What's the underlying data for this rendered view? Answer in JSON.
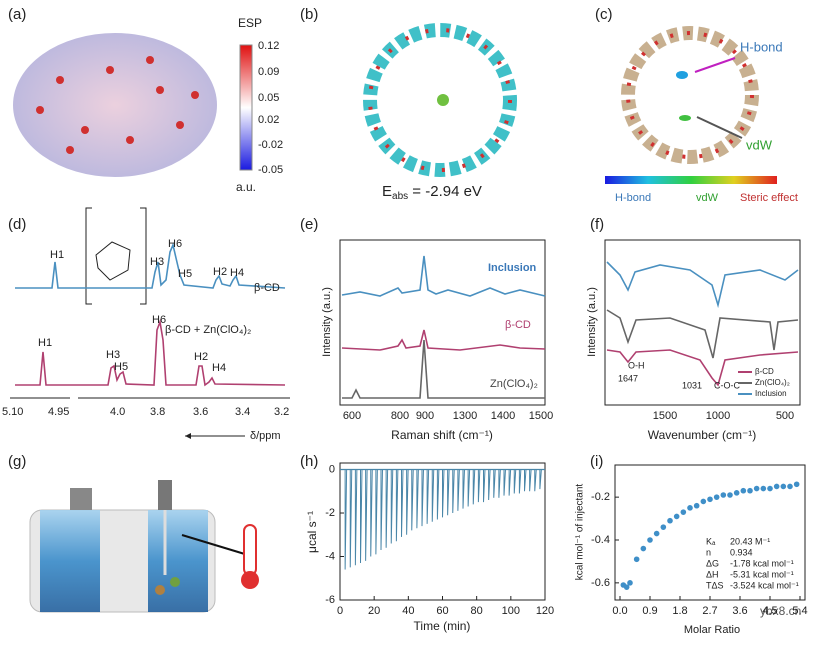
{
  "panels": {
    "a": {
      "label": "(a)",
      "colorbar_title": "ESP",
      "colorbar_unit": "a.u.",
      "colorbar_ticks": [
        "0.12",
        "0.09",
        "0.05",
        "0.02",
        "-0.02",
        "-0.05"
      ]
    },
    "b": {
      "label": "(b)",
      "energy": {
        "main": "E",
        "sub": "abs",
        "rest": " = -2.94 eV"
      }
    },
    "c": {
      "label": "(c)",
      "hbond": "H-bond",
      "vdw": "vdW",
      "scale_labels": [
        "H-bond",
        "vdW",
        "Steric effect"
      ]
    },
    "d": {
      "label": "(d)",
      "peaks_top": [
        "H1",
        "H6",
        "H3",
        "H5",
        "H2",
        "H4"
      ],
      "trace_top": "β-CD",
      "peaks_bottom": [
        "H1",
        "H3",
        "H5",
        "H6",
        "H2",
        "H4"
      ],
      "trace_bottom": "β-CD + Zn(ClO₄)₂",
      "xticks": [
        "5.10",
        "4.95",
        "4.0",
        "3.8",
        "3.6",
        "3.4",
        "3.2"
      ],
      "xlabel": "δ/ppm"
    },
    "e": {
      "label": "(e)",
      "ylabel": "Intensity (a.u.)",
      "xlabel": "Raman shift (cm⁻¹)",
      "xticks": [
        "600",
        "800",
        "900",
        "1300",
        "1400",
        "1500"
      ],
      "traces": [
        "Inclusion",
        "β-CD",
        "Zn(ClO₄)₂"
      ]
    },
    "f": {
      "label": "(f)",
      "ylabel": "Intensity (a.u.)",
      "xlabel": "Wavenumber (cm⁻¹)",
      "xticks": [
        "1500",
        "1000",
        "500"
      ],
      "annotations": [
        "O-H",
        "1647",
        "1031",
        "C-O-C"
      ],
      "legend": [
        "β-CD",
        "Zn(ClO₄)₂",
        "Inclusion"
      ]
    },
    "g": {
      "label": "(g)"
    },
    "h": {
      "label": "(h)",
      "chart": {
        "type": "spikes",
        "xlabel": "Time (min)",
        "ylabel": "μcal s⁻¹",
        "color": "#4a86a8",
        "xlim": [
          0,
          120
        ],
        "ylim": [
          -6,
          0.3
        ],
        "xticks": [
          0,
          20,
          40,
          60,
          80,
          100,
          120
        ],
        "yticks": [
          0,
          -2,
          -4,
          -6
        ],
        "x": [
          3,
          6,
          9,
          12,
          15,
          18,
          21,
          24,
          27,
          30,
          33,
          36,
          39,
          42,
          45,
          48,
          51,
          54,
          57,
          60,
          63,
          66,
          69,
          72,
          75,
          78,
          81,
          84,
          87,
          90,
          93,
          96,
          99,
          102,
          105,
          108,
          111,
          114,
          117
        ],
        "values": [
          -4.6,
          -4.5,
          -4.4,
          -4.3,
          -4.2,
          -4.0,
          -3.9,
          -3.7,
          -3.6,
          -3.4,
          -3.3,
          -3.1,
          -3.0,
          -2.8,
          -2.7,
          -2.6,
          -2.5,
          -2.4,
          -2.3,
          -2.2,
          -2.1,
          -2.0,
          -1.9,
          -1.8,
          -1.7,
          -1.6,
          -1.5,
          -1.5,
          -1.4,
          -1.3,
          -1.3,
          -1.2,
          -1.2,
          -1.1,
          -1.1,
          -1.0,
          -1.0,
          -1.0,
          -0.9
        ]
      }
    },
    "i": {
      "label": "(i)",
      "chart": {
        "type": "scatter",
        "xlabel": "Molar Ratio",
        "ylabel": "kcal mol⁻¹ of injectant",
        "color": "#3f8fc8",
        "xlim": [
          -0.15,
          5.55
        ],
        "ylim": [
          -0.68,
          -0.05
        ],
        "xticks": [
          {
            "value": 0,
            "label": "0.0"
          },
          0.9,
          1.8,
          2.7,
          3.6,
          4.5,
          5.4
        ],
        "yticks": [
          -0.2,
          -0.4,
          -0.6
        ],
        "x": [
          0.1,
          0.2,
          0.3,
          0.5,
          0.7,
          0.9,
          1.1,
          1.3,
          1.5,
          1.7,
          1.9,
          2.1,
          2.3,
          2.5,
          2.7,
          2.9,
          3.1,
          3.3,
          3.5,
          3.7,
          3.9,
          4.1,
          4.3,
          4.5,
          4.7,
          4.9,
          5.1,
          5.3
        ],
        "values": [
          -0.61,
          -0.62,
          -0.6,
          -0.49,
          -0.44,
          -0.4,
          -0.37,
          -0.34,
          -0.31,
          -0.29,
          -0.27,
          -0.25,
          -0.24,
          -0.22,
          -0.21,
          -0.2,
          -0.19,
          -0.19,
          -0.18,
          -0.17,
          -0.17,
          -0.16,
          -0.16,
          -0.16,
          -0.15,
          -0.15,
          -0.15,
          -0.14
        ],
        "params": [
          [
            "Kₐ",
            "20.43 M⁻¹"
          ],
          [
            "n",
            "0.934"
          ],
          [
            "ΔG",
            "-1.78 kcal mol⁻¹"
          ],
          [
            "ΔH",
            "-5.31 kcal mol⁻¹"
          ],
          [
            "TΔS",
            "-3.524 kcal mol⁻¹"
          ]
        ]
      }
    },
    "watermark": "ybx8.cn"
  }
}
